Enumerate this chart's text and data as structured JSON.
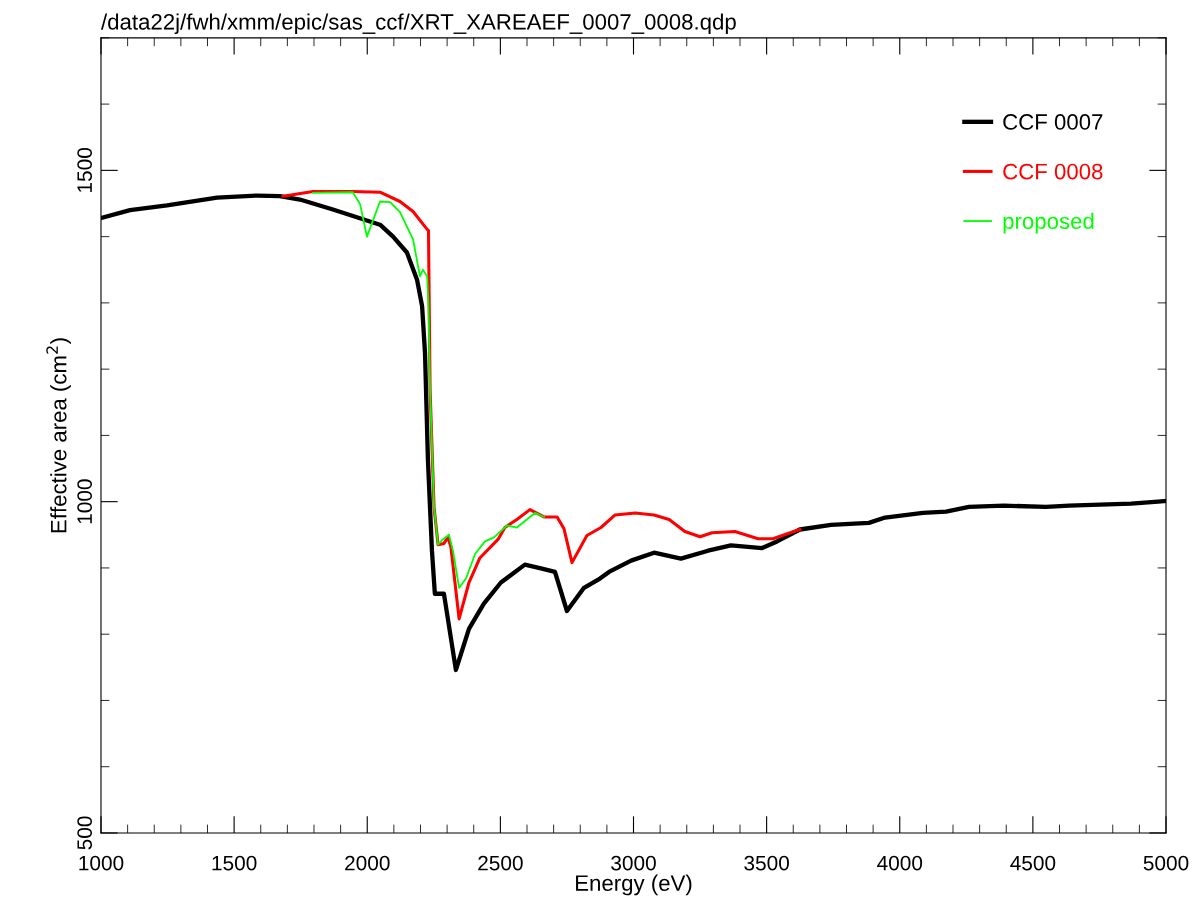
{
  "chart_data": {
    "type": "line",
    "title": "/data22j/fwh/xmm/epic/sas_ccf/XRT_XAREAEF_0007_0008.qdp",
    "xlabel": "Energy (eV)",
    "ylabel": "Effective area (cm$^{2}$)",
    "xlim": [
      1000,
      5000
    ],
    "ylim": [
      500,
      1700
    ],
    "xticks": [
      1000,
      1500,
      2000,
      2500,
      3000,
      3500,
      4000,
      4500,
      5000
    ],
    "yticks": [
      500,
      1000,
      1500
    ],
    "grid": false,
    "legend": "top right",
    "marker": "none",
    "line_style": "solid",
    "series": [
      {
        "name": "CCF 0007",
        "color": "#000000",
        "x": [
          1000,
          1109,
          1248,
          1436,
          1586,
          1672,
          1747,
          1871,
          2048,
          2097,
          2149,
          2187,
          2206,
          2217,
          2228,
          2243,
          2254,
          2288,
          2333,
          2382,
          2438,
          2502,
          2592,
          2656,
          2705,
          2750,
          2814,
          2874,
          2908,
          2991,
          3077,
          3178,
          3280,
          3366,
          3483,
          3539,
          3625,
          3742,
          3884,
          3945,
          4087,
          4174,
          4260,
          4391,
          4549,
          4636,
          4869,
          4970,
          5000
        ],
        "values": [
          1428,
          1440,
          1447,
          1459,
          1462,
          1461,
          1456,
          1441,
          1418,
          1400,
          1376,
          1335,
          1295,
          1224,
          1062,
          926,
          861,
          861,
          746,
          808,
          846,
          878,
          905,
          899,
          894,
          835,
          870,
          884,
          894,
          911,
          923,
          914,
          926,
          934,
          930,
          940,
          958,
          965,
          968,
          976,
          983,
          985,
          992,
          994,
          992,
          994,
          997,
          1000,
          1001
        ]
      },
      {
        "name": "CCF 0008",
        "color": "#ff0000",
        "x": [
          1684,
          1796,
          1946,
          2048,
          2123,
          2172,
          2225,
          2230,
          2236,
          2251,
          2266,
          2288,
          2303,
          2314,
          2345,
          2382,
          2423,
          2491,
          2517,
          2562,
          2611,
          2664,
          2713,
          2739,
          2769,
          2825,
          2878,
          2931,
          3006,
          3077,
          3134,
          3193,
          3250,
          3295,
          3381,
          3468,
          3524,
          3580,
          3625
        ],
        "values": [
          1461,
          1468,
          1468,
          1467,
          1453,
          1438,
          1411,
          1409,
          1169,
          991,
          935,
          937,
          946,
          932,
          823,
          878,
          915,
          943,
          961,
          973,
          988,
          977,
          977,
          959,
          908,
          949,
          961,
          980,
          983,
          980,
          973,
          955,
          947,
          953,
          955,
          944,
          944,
          952,
          958
        ]
      },
      {
        "name": "proposed",
        "color": "#00ff00",
        "x": [
          1796,
          1946,
          1973,
          1999,
          2048,
          2086,
          2123,
          2172,
          2198,
          2209,
          2225,
          2230,
          2236,
          2251,
          2266,
          2284,
          2307,
          2322,
          2345,
          2371,
          2405,
          2442,
          2476,
          2525,
          2562,
          2630,
          2664
        ],
        "values": [
          1466,
          1467,
          1449,
          1400,
          1453,
          1452,
          1437,
          1396,
          1340,
          1350,
          1340,
          1296,
          1169,
          991,
          935,
          943,
          950,
          926,
          870,
          884,
          921,
          940,
          946,
          964,
          961,
          983,
          977
        ]
      }
    ]
  }
}
